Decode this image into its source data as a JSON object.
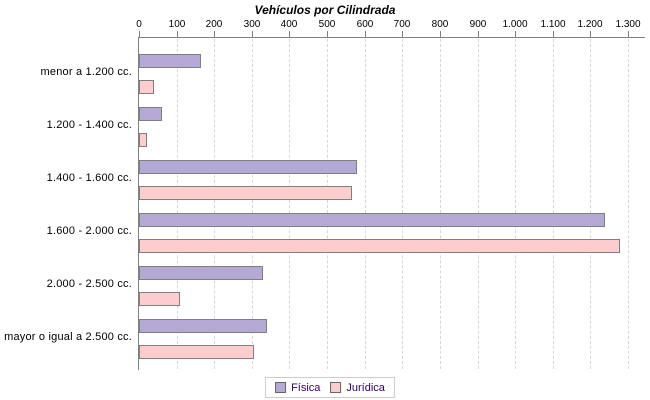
{
  "title": "Vehículos por Cilindrada",
  "chart_data": {
    "type": "bar",
    "orientation": "horizontal",
    "title": "Vehículos por Cilindrada",
    "categories": [
      "menor a 1.200 cc.",
      "1.200 - 1.400 cc.",
      "1.400 - 1.600 cc.",
      "1.600 - 2.000 cc.",
      "2.000 - 2.500 cc.",
      "mayor o igual a 2.500 cc."
    ],
    "series": [
      {
        "name": "Física",
        "color": "#b4a8d5",
        "values": [
          165,
          60,
          580,
          1240,
          330,
          340
        ]
      },
      {
        "name": "Jurídica",
        "color": "#fdcdcd",
        "values": [
          40,
          20,
          565,
          1280,
          110,
          305
        ]
      }
    ],
    "xlim": [
      0,
      1300
    ],
    "x_ticks": [
      0,
      100,
      200,
      300,
      400,
      500,
      600,
      700,
      800,
      900,
      1000,
      1100,
      1200,
      1300
    ],
    "x_tick_labels": [
      "0",
      "100",
      "200",
      "300",
      "400",
      "500",
      "600",
      "700",
      "800",
      "900",
      "1.000",
      "1.100",
      "1.200",
      "1.300"
    ],
    "grid": "vertical-dashed",
    "legend_position": "bottom-center"
  },
  "colors": {
    "bar_border": "#7f7f7f",
    "axis_line": "#808080",
    "gridline": "#d6d6d6",
    "title_text": "#000000",
    "label_text": "#000000",
    "legend_text": "#330066",
    "legend_border": "#cccccc",
    "background": "#ffffff"
  }
}
